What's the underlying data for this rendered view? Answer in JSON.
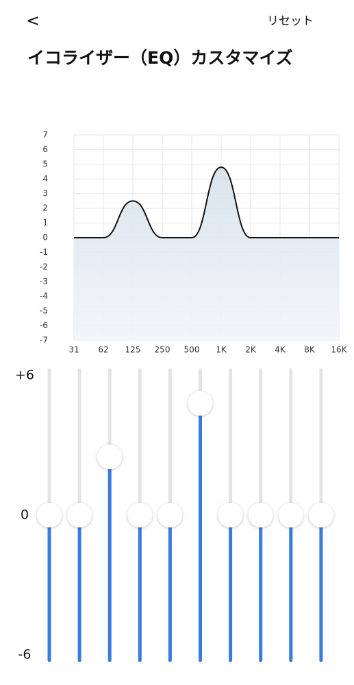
{
  "header": {
    "back": "<",
    "reset": "リセット",
    "title": "イコライザー（EQ）カスタマイズ"
  },
  "chart_data": {
    "type": "line",
    "categories": [
      "31",
      "62",
      "125",
      "250",
      "500",
      "1K",
      "2K",
      "4K",
      "8K",
      "16K"
    ],
    "values": [
      0,
      0,
      2.5,
      0,
      0,
      4.8,
      0,
      0,
      0,
      0
    ],
    "ylim": [
      -7,
      7
    ],
    "yticks": [
      -7,
      -6,
      -5,
      -4,
      -3,
      -2,
      -1,
      0,
      1,
      2,
      3,
      4,
      5,
      6,
      7
    ],
    "grid": true,
    "color": "#111111",
    "fill": "#dbe5ef"
  },
  "equalizer": {
    "range": [
      -6,
      6
    ],
    "scale": [
      {
        "value": 6,
        "label": "+6"
      },
      0,
      -6
    ],
    "values": [
      0,
      0,
      2.5,
      0,
      0,
      4.8,
      0,
      0,
      0,
      0
    ],
    "color": "#3a7be0"
  }
}
